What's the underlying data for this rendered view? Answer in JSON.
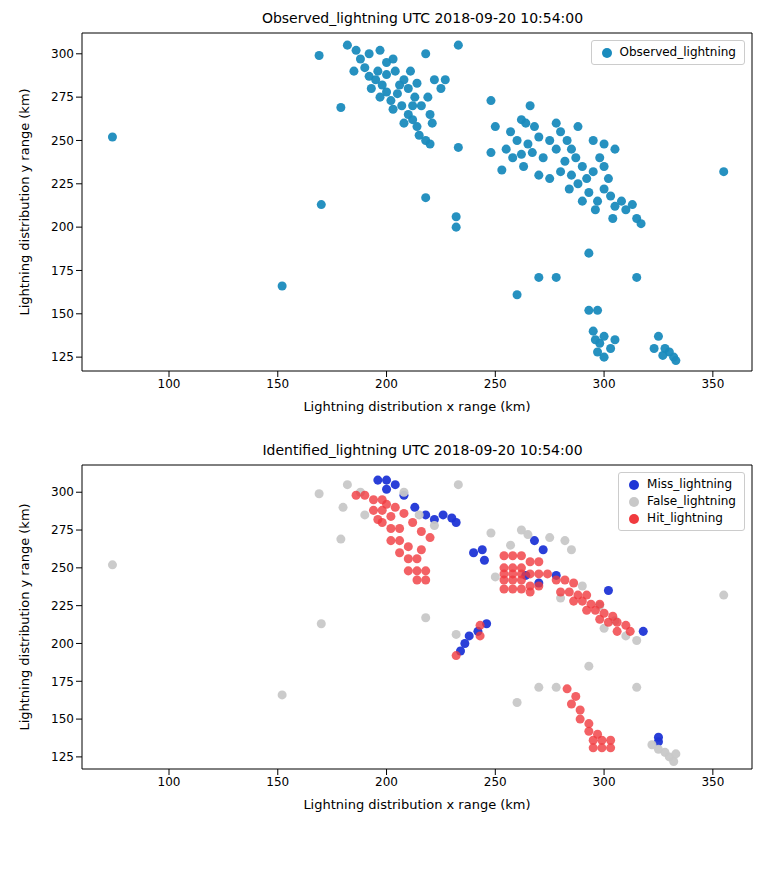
{
  "chart_data": [
    {
      "type": "scatter",
      "title": "Observed_lightning UTC 2018-09-20 10:54:00",
      "x_label": "Lightning distribution x range (km)",
      "y_label": "Lightning distribution y range (km)",
      "xlim": [
        60,
        368
      ],
      "xticks": [
        100,
        150,
        200,
        250,
        300,
        350
      ],
      "ylim": [
        117,
        312
      ],
      "yticks": [
        125,
        150,
        175,
        200,
        225,
        250,
        275,
        300
      ],
      "legend": "upper right",
      "grid": false,
      "marker": "circle",
      "series": [
        {
          "name": "Observed_lightning",
          "color": "#1a8bbd",
          "x": [
            74,
            152,
            170,
            218,
            232,
            232,
            233,
            218,
            233,
            169,
            179,
            355,
            260,
            270,
            278,
            293,
            315,
            248,
            248,
            182,
            186,
            188,
            185,
            190,
            192,
            195,
            193,
            198,
            200,
            197,
            202,
            205,
            203,
            207,
            210,
            208,
            212,
            214,
            215,
            218,
            220,
            196,
            200,
            204,
            208,
            210,
            213,
            216,
            220,
            225,
            227,
            222,
            192,
            197,
            203,
            211,
            214,
            219,
            221,
            212,
            206,
            200,
            257,
            260,
            262,
            265,
            258,
            263,
            267,
            270,
            268,
            272,
            275,
            278,
            280,
            283,
            285,
            282,
            287,
            290,
            285,
            292,
            288,
            295,
            298,
            300,
            293,
            297,
            300,
            303,
            305,
            308,
            310,
            313,
            315,
            317,
            302,
            280,
            275,
            284,
            290,
            305,
            300,
            295,
            288,
            278,
            270,
            255,
            253,
            266,
            264,
            262,
            250,
            296,
            304,
            293,
            297,
            295,
            298,
            300,
            303,
            297,
            300,
            305,
            296,
            325,
            323,
            328,
            330,
            332,
            333,
            327
          ],
          "values": [
            252,
            166,
            213,
            217,
            206,
            200,
            305,
            300,
            246,
            299,
            269,
            232,
            161,
            171,
            171,
            185,
            171,
            243,
            273,
            305,
            302,
            297,
            290,
            292,
            287,
            285,
            280,
            282,
            278,
            275,
            273,
            277,
            268,
            270,
            265,
            260,
            262,
            258,
            253,
            250,
            248,
            290,
            295,
            290,
            285,
            280,
            275,
            270,
            265,
            280,
            285,
            285,
            300,
            302,
            297,
            290,
            283,
            275,
            260,
            270,
            282,
            288,
            255,
            250,
            262,
            248,
            240,
            235,
            243,
            252,
            258,
            240,
            250,
            245,
            255,
            250,
            245,
            238,
            240,
            235,
            230,
            228,
            225,
            232,
            240,
            235,
            220,
            215,
            222,
            218,
            212,
            215,
            210,
            213,
            205,
            202,
            228,
            232,
            228,
            222,
            215,
            245,
            248,
            250,
            258,
            260,
            230,
            245,
            233,
            270,
            260,
            242,
            258,
            210,
            205,
            152,
            152,
            140,
            133,
            137,
            130,
            128,
            125,
            135,
            135,
            137,
            130,
            130,
            128,
            125,
            123,
            126
          ]
        }
      ]
    },
    {
      "type": "scatter",
      "title": "Identified_lightning UTC 2018-09-20 10:54:00",
      "x_label": "Lightning distribution x range (km)",
      "y_label": "Lightning distribution y range (km)",
      "xlim": [
        60,
        368
      ],
      "xticks": [
        100,
        150,
        200,
        250,
        300,
        350
      ],
      "ylim": [
        117,
        318
      ],
      "yticks": [
        125,
        150,
        175,
        200,
        225,
        250,
        275,
        300
      ],
      "legend": "upper right",
      "grid": false,
      "marker": "circle",
      "series": [
        {
          "name": "Miss_lightning",
          "color": "#1f35d6",
          "x": [
            196,
            200,
            204,
            213,
            218,
            222,
            226,
            230,
            232,
            240,
            245,
            244,
            238,
            242,
            246,
            236,
            234,
            268,
            272,
            264,
            270,
            318,
            325,
            325,
            278,
            302,
            200,
            208
          ],
          "values": [
            308,
            308,
            305,
            290,
            285,
            282,
            285,
            283,
            280,
            260,
            255,
            262,
            205,
            208,
            213,
            200,
            195,
            268,
            262,
            245,
            240,
            208,
            138,
            135,
            245,
            235,
            302,
            298
          ]
        },
        {
          "name": "False_lightning",
          "color": "#c8c8c8",
          "x": [
            74,
            152,
            170,
            218,
            233,
            169,
            179,
            355,
            260,
            270,
            278,
            293,
            315,
            232,
            182,
            188,
            180,
            190,
            208,
            215,
            222,
            248,
            250,
            257,
            262,
            265,
            275,
            282,
            285,
            290,
            298,
            305,
            310,
            315,
            300,
            280,
            325,
            328,
            330,
            332,
            333,
            322
          ],
          "values": [
            252,
            166,
            213,
            217,
            305,
            299,
            269,
            232,
            161,
            171,
            171,
            185,
            171,
            206,
            305,
            300,
            290,
            285,
            300,
            285,
            278,
            273,
            244,
            265,
            275,
            272,
            270,
            268,
            262,
            238,
            225,
            215,
            205,
            202,
            210,
            230,
            130,
            128,
            125,
            122,
            127,
            133
          ]
        },
        {
          "name": "Hit_lightning",
          "color": "#f03a3e",
          "x": [
            186,
            190,
            194,
            198,
            194,
            198,
            202,
            198,
            202,
            206,
            202,
            206,
            210,
            206,
            210,
            214,
            210,
            214,
            218,
            214,
            218,
            200,
            204,
            208,
            212,
            216,
            196,
            216,
            220,
            254,
            258,
            262,
            266,
            270,
            254,
            258,
            262,
            266,
            270,
            254,
            258,
            262,
            266,
            270,
            254,
            258,
            262,
            266,
            254,
            258,
            262,
            274,
            278,
            282,
            286,
            280,
            284,
            288,
            292,
            286,
            290,
            294,
            298,
            292,
            296,
            300,
            304,
            298,
            302,
            306,
            310,
            306,
            312,
            232,
            243,
            243,
            283,
            287,
            285,
            289,
            289,
            293,
            293,
            297,
            295,
            299,
            303,
            295,
            299,
            303
          ],
          "values": [
            298,
            298,
            295,
            295,
            288,
            288,
            284,
            280,
            276,
            276,
            268,
            268,
            264,
            260,
            256,
            256,
            248,
            248,
            248,
            242,
            242,
            292,
            290,
            286,
            280,
            274,
            282,
            262,
            270,
            258,
            258,
            258,
            254,
            254,
            250,
            250,
            250,
            246,
            246,
            242,
            242,
            242,
            238,
            238,
            236,
            236,
            236,
            234,
            246,
            246,
            246,
            246,
            242,
            242,
            240,
            234,
            234,
            232,
            232,
            228,
            228,
            226,
            226,
            222,
            222,
            220,
            218,
            216,
            214,
            214,
            212,
            208,
            208,
            192,
            205,
            212,
            170,
            165,
            160,
            156,
            150,
            147,
            142,
            140,
            136,
            136,
            136,
            131,
            131,
            131
          ]
        }
      ]
    }
  ]
}
